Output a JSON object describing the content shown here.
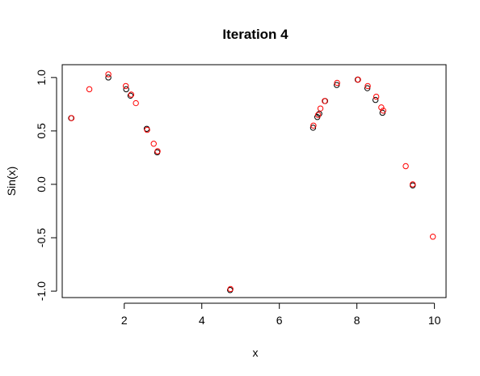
{
  "chart_data": {
    "type": "scatter",
    "title": "Iteration 4",
    "xlabel": "x",
    "ylabel": "Sin(x)",
    "xlim": [
      0.4,
      10.3
    ],
    "ylim": [
      -1.06,
      1.12
    ],
    "grid": false,
    "x_ticks": [
      {
        "value": 2,
        "label": "2"
      },
      {
        "value": 4,
        "label": "4"
      },
      {
        "value": 6,
        "label": "6"
      },
      {
        "value": 8,
        "label": "8"
      },
      {
        "value": 10,
        "label": "10"
      }
    ],
    "y_ticks": [
      {
        "value": -1.0,
        "label": "-1.0"
      },
      {
        "value": -0.5,
        "label": "-0.5"
      },
      {
        "value": 0.0,
        "label": "0.0"
      },
      {
        "value": 0.5,
        "label": "0.5"
      },
      {
        "value": 1.0,
        "label": "1.0"
      }
    ],
    "series": [
      {
        "color": "#000000",
        "marker": "open-circle",
        "points": [
          [
            0.63,
            0.62
          ],
          [
            1.59,
            1.0
          ],
          [
            2.05,
            0.89
          ],
          [
            2.16,
            0.83
          ],
          [
            2.58,
            0.52
          ],
          [
            2.85,
            0.3
          ],
          [
            4.73,
            -0.99
          ],
          [
            6.87,
            0.53
          ],
          [
            6.98,
            0.63
          ],
          [
            7.03,
            0.66
          ],
          [
            7.18,
            0.78
          ],
          [
            7.48,
            0.93
          ],
          [
            8.02,
            0.98
          ],
          [
            8.27,
            0.9
          ],
          [
            8.48,
            0.79
          ],
          [
            8.66,
            0.67
          ],
          [
            9.44,
            -0.01
          ]
        ]
      },
      {
        "color": "#ff0000",
        "marker": "open-circle",
        "points": [
          [
            0.64,
            0.62
          ],
          [
            1.1,
            0.89
          ],
          [
            1.59,
            1.03
          ],
          [
            2.04,
            0.92
          ],
          [
            2.18,
            0.84
          ],
          [
            2.3,
            0.76
          ],
          [
            2.59,
            0.51
          ],
          [
            2.76,
            0.38
          ],
          [
            2.86,
            0.31
          ],
          [
            4.74,
            -0.98
          ],
          [
            6.88,
            0.55
          ],
          [
            7.0,
            0.65
          ],
          [
            7.06,
            0.71
          ],
          [
            7.17,
            0.78
          ],
          [
            7.49,
            0.95
          ],
          [
            8.03,
            0.98
          ],
          [
            8.28,
            0.92
          ],
          [
            8.5,
            0.82
          ],
          [
            8.63,
            0.72
          ],
          [
            8.68,
            0.69
          ],
          [
            9.26,
            0.17
          ],
          [
            9.44,
            0.0
          ],
          [
            9.96,
            -0.49
          ]
        ]
      }
    ]
  }
}
